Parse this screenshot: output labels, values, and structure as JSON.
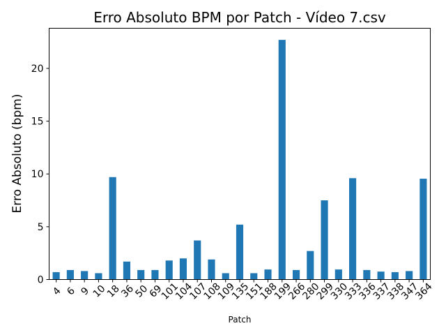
{
  "chart_data": {
    "type": "bar",
    "title": "Erro Absoluto BPM por Patch - Vídeo 7.csv",
    "xlabel": "Patch",
    "ylabel": "Erro Absoluto (bpm)",
    "categories": [
      "4",
      "6",
      "9",
      "10",
      "18",
      "36",
      "50",
      "69",
      "101",
      "104",
      "107",
      "108",
      "109",
      "135",
      "151",
      "188",
      "199",
      "266",
      "280",
      "299",
      "330",
      "333",
      "336",
      "337",
      "338",
      "347",
      "364"
    ],
    "values": [
      0.7,
      0.9,
      0.8,
      0.6,
      9.7,
      1.7,
      0.9,
      0.9,
      1.8,
      2.0,
      3.7,
      1.9,
      0.6,
      5.2,
      0.6,
      0.95,
      22.7,
      0.9,
      2.7,
      7.5,
      0.95,
      9.6,
      0.9,
      0.75,
      0.7,
      0.8,
      9.55
    ],
    "ylim": [
      0,
      23.8
    ],
    "yticks": [
      0,
      5,
      10,
      15,
      20
    ],
    "bar_color": "#1f77b4",
    "grid": false,
    "legend": "none"
  }
}
